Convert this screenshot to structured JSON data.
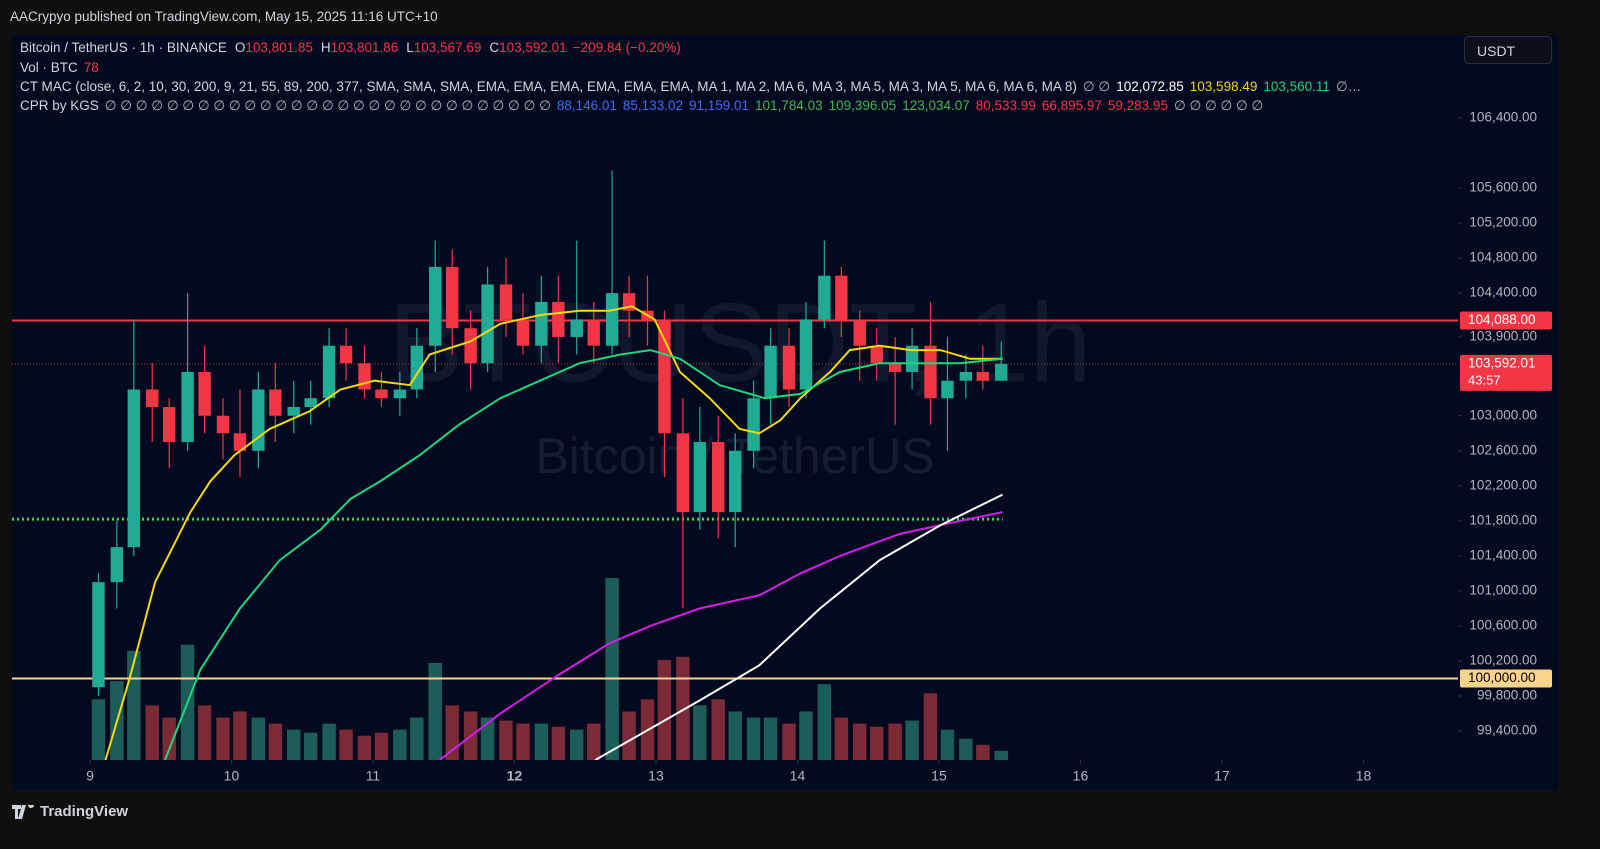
{
  "header": {
    "publisher": "AACrypyo published on TradingView.com, May 15, 2025 11:16 UTC+10",
    "currency": "USDT",
    "brand": "TradingView"
  },
  "legend": {
    "symbol": "Bitcoin / TetherUS · 1h · BINANCE",
    "ohlc": [
      {
        "key": "O",
        "value": "103,801.85"
      },
      {
        "key": "H",
        "value": "103,801.86"
      },
      {
        "key": "L",
        "value": "103,567.69"
      },
      {
        "key": "C",
        "value": "103,592.01"
      }
    ],
    "change": "−209.84 (−0.20%)",
    "volume_label": "Vol · BTC",
    "volume_value": "78",
    "indicators": [
      {
        "name": "CT MAC (close, 6, 2, 10, 30, 200, 9, 21, 55, 89, 200, 377, SMA, SMA, SMA, EMA, EMA, EMA, EMA, EMA, EMA, MA 1, MA 2, MA 6, MA 3, MA 5, MA 3, MA 5, MA 6, MA 6, MA 8)",
        "items": [
          {
            "text": "∅ ∅",
            "color": "#b2b5be"
          },
          {
            "text": "102,072.85",
            "color": "#ffffff"
          },
          {
            "text": "103,598.49",
            "color": "#f5d90a"
          },
          {
            "text": "103,560.11",
            "color": "#22d17a"
          },
          {
            "text": "∅…",
            "color": "#b2b5be"
          }
        ]
      },
      {
        "name": "CPR by KGS",
        "items": [
          {
            "text": "∅ ∅ ∅ ∅ ∅ ∅ ∅ ∅ ∅ ∅ ∅ ∅ ∅ ∅ ∅ ∅ ∅ ∅ ∅ ∅ ∅ ∅ ∅ ∅ ∅ ∅ ∅ ∅ ∅",
            "color": "#b2b5be"
          },
          {
            "text": "88,146.01",
            "color": "#3d6cf0"
          },
          {
            "text": "85,133.02",
            "color": "#3d6cf0"
          },
          {
            "text": "91,159.01",
            "color": "#3d6cf0"
          },
          {
            "text": "101,784.03",
            "color": "#43b553"
          },
          {
            "text": "109,396.05",
            "color": "#43b553"
          },
          {
            "text": "123,034.07",
            "color": "#43b553"
          },
          {
            "text": "80,533.99",
            "color": "#f23645"
          },
          {
            "text": "66,895.97",
            "color": "#f23645"
          },
          {
            "text": "59,283.95",
            "color": "#f23645"
          },
          {
            "text": "∅ ∅ ∅ ∅ ∅ ∅",
            "color": "#b2b5be"
          }
        ]
      }
    ]
  },
  "chart_data": {
    "type": "candlestick",
    "watermark": "BTCUSDT, 1h",
    "watermark_sub": "Bitcoin / TetherUS",
    "up_color": "#22ab94",
    "down_color": "#f23645",
    "volume_up_color": "#1c5d59",
    "volume_down_color": "#7b2b36",
    "x": [
      9.06,
      9.19,
      9.31,
      9.44,
      9.56,
      9.69,
      9.81,
      9.94,
      10.06,
      10.19,
      10.31,
      10.44,
      10.56,
      10.69,
      10.81,
      10.94,
      11.06,
      11.19,
      11.31,
      11.44,
      11.56,
      11.69,
      11.81,
      11.94,
      12.06,
      12.19,
      12.31,
      12.44,
      12.56,
      12.69,
      12.81,
      12.94,
      13.06,
      13.19,
      13.31,
      13.44,
      13.56,
      13.69,
      13.81,
      13.94,
      14.06,
      14.19,
      14.31,
      14.44,
      14.56,
      14.69,
      14.81,
      14.94,
      15.06,
      15.19,
      15.31,
      15.44
    ],
    "open": [
      99900,
      101100,
      101500,
      103300,
      103100,
      102700,
      103500,
      103000,
      102800,
      102600,
      103300,
      103000,
      103100,
      103200,
      103800,
      103600,
      103300,
      103200,
      103300,
      103800,
      104700,
      104000,
      103600,
      104500,
      104100,
      103800,
      104300,
      103900,
      104100,
      103800,
      104400,
      104200,
      104100,
      102800,
      101900,
      102700,
      101900,
      102600,
      103200,
      103800,
      103300,
      104100,
      104600,
      104100,
      103800,
      103600,
      103500,
      103800,
      103200,
      103400,
      103500,
      103400
    ],
    "high": [
      101200,
      101800,
      104100,
      103600,
      103200,
      104400,
      103800,
      103200,
      103300,
      103500,
      103600,
      103400,
      103400,
      104000,
      104000,
      103800,
      103500,
      103500,
      104000,
      105000,
      104900,
      104200,
      104700,
      104800,
      104400,
      104600,
      104600,
      105000,
      104300,
      105800,
      104600,
      104600,
      104200,
      103200,
      103100,
      103000,
      102800,
      103400,
      104000,
      104000,
      104300,
      105000,
      104700,
      104200,
      104000,
      103900,
      104000,
      104300,
      103900,
      103700,
      103800,
      103850
    ],
    "low": [
      99800,
      100800,
      101400,
      102700,
      102400,
      102600,
      102800,
      102500,
      102300,
      102400,
      102700,
      102800,
      102900,
      103100,
      103400,
      103200,
      103100,
      103000,
      103200,
      103500,
      103700,
      103300,
      103500,
      103900,
      103700,
      103600,
      103600,
      103700,
      103600,
      103700,
      103900,
      103800,
      102300,
      100800,
      101700,
      101600,
      101500,
      102400,
      102900,
      103100,
      103200,
      104000,
      103900,
      103400,
      103400,
      102900,
      103300,
      102900,
      102600,
      103200,
      103300,
      103400
    ],
    "close": [
      101100,
      101500,
      103300,
      103100,
      102700,
      103500,
      103000,
      102800,
      102600,
      103300,
      103000,
      103100,
      103200,
      103800,
      103600,
      103300,
      103200,
      103300,
      103800,
      104700,
      104000,
      103600,
      104500,
      104100,
      103800,
      104300,
      103900,
      104100,
      103800,
      104400,
      104200,
      104100,
      102800,
      101900,
      102700,
      101900,
      102600,
      103200,
      103800,
      103300,
      104100,
      104600,
      104100,
      103800,
      103600,
      103500,
      103800,
      103200,
      103400,
      103500,
      103400,
      103592.01
    ],
    "volume": [
      1000,
      1300,
      1800,
      900,
      700,
      1900,
      900,
      700,
      800,
      700,
      600,
      500,
      450,
      600,
      500,
      400,
      450,
      500,
      700,
      1600,
      900,
      800,
      700,
      650,
      600,
      600,
      550,
      500,
      600,
      3000,
      800,
      1000,
      1650,
      1700,
      900,
      1000,
      800,
      700,
      700,
      600,
      800,
      1250,
      700,
      600,
      550,
      600,
      650,
      1100,
      500,
      350,
      250,
      150
    ],
    "volume_lim": [
      0,
      3000
    ],
    "lines": [
      {
        "color": "#f5d90a",
        "x": [
          9.11,
          9.28,
          9.46,
          9.71,
          9.85,
          10.02,
          10.27,
          10.55,
          10.77,
          11.01,
          11.26,
          11.4,
          11.69,
          11.9,
          12.18,
          12.46,
          12.67,
          12.83,
          12.99,
          13.17,
          13.38,
          13.59,
          13.73,
          13.88,
          14.02,
          14.23,
          14.37,
          14.58,
          14.8,
          15.01,
          15.22,
          15.45
        ],
        "values": [
          99068,
          100000,
          101100,
          101900,
          102250,
          102550,
          102850,
          103050,
          103300,
          103400,
          103350,
          103700,
          103850,
          104050,
          104150,
          104200,
          104200,
          104250,
          104100,
          103500,
          103200,
          102850,
          102800,
          102950,
          103200,
          103500,
          103750,
          103800,
          103750,
          103750,
          103650,
          103650
        ]
      },
      {
        "color": "#1fd67f",
        "x": [
          9.53,
          9.78,
          10.06,
          10.34,
          10.63,
          10.84,
          11.05,
          11.33,
          11.61,
          11.9,
          12.18,
          12.46,
          12.75,
          12.96,
          13.17,
          13.45,
          13.77,
          14.02,
          14.3,
          14.58,
          14.87,
          15.15,
          15.45
        ],
        "values": [
          99068,
          100100,
          100800,
          101350,
          101700,
          102050,
          102250,
          102550,
          102900,
          103200,
          103400,
          103600,
          103700,
          103750,
          103650,
          103350,
          103200,
          103250,
          103500,
          103600,
          103600,
          103600,
          103650
        ]
      },
      {
        "color": "#d21ee6",
        "x": [
          11.47,
          11.9,
          12.32,
          12.67,
          12.96,
          13.31,
          13.73,
          14.02,
          14.3,
          14.72,
          15.15,
          15.45
        ],
        "values": [
          99068,
          99600,
          100050,
          100400,
          100600,
          100800,
          100950,
          101200,
          101400,
          101650,
          101800,
          101900
        ]
      },
      {
        "color": "#ffffff",
        "x": [
          12.57,
          13.31,
          13.73,
          14.16,
          14.58,
          15.01,
          15.45
        ],
        "values": [
          99068,
          99750,
          100150,
          100800,
          101350,
          101750,
          102100
        ]
      }
    ],
    "levels": [
      {
        "value": 104088,
        "label": "104,088.00",
        "color": "#f23645",
        "style": "solid"
      },
      {
        "value": 100000,
        "label": "100,000.00",
        "color": "#fbd38d",
        "style": "solid"
      },
      {
        "value": 101820,
        "color": "#43d14b",
        "style": "dotted",
        "end": 15.45
      },
      {
        "value": 103592.01,
        "label": "103,592.01",
        "sub": "43:57",
        "color": "#f23645",
        "style": "fine"
      }
    ],
    "xlim": [
      8.449,
      18.668
    ],
    "xticks": [
      9,
      10,
      11,
      12,
      13,
      14,
      15,
      16,
      17,
      18
    ],
    "xtick_bold": 12,
    "ylim": [
      99069,
      107348
    ],
    "yticks": [
      {
        "value": 106400,
        "label": "106,400.00"
      },
      {
        "value": 105600,
        "label": "105,600.00"
      },
      {
        "value": 105200,
        "label": "105,200.00"
      },
      {
        "value": 104800,
        "label": "104,800.00"
      },
      {
        "value": 104400,
        "label": "104,400.00"
      },
      {
        "value": 103900,
        "label": "103,900.00"
      },
      {
        "value": 103000,
        "label": "103,000.00"
      },
      {
        "value": 102600,
        "label": "102,600.00"
      },
      {
        "value": 102200,
        "label": "102,200.00"
      },
      {
        "value": 101800,
        "label": "101,800.00"
      },
      {
        "value": 101400,
        "label": "101,400.00"
      },
      {
        "value": 101000,
        "label": "101,000.00"
      },
      {
        "value": 100600,
        "label": "100,600.00"
      },
      {
        "value": 100200,
        "label": "100,200.00"
      },
      {
        "value": 99800,
        "label": "99,800.00"
      },
      {
        "value": 99400,
        "label": "99,400.00"
      }
    ]
  }
}
